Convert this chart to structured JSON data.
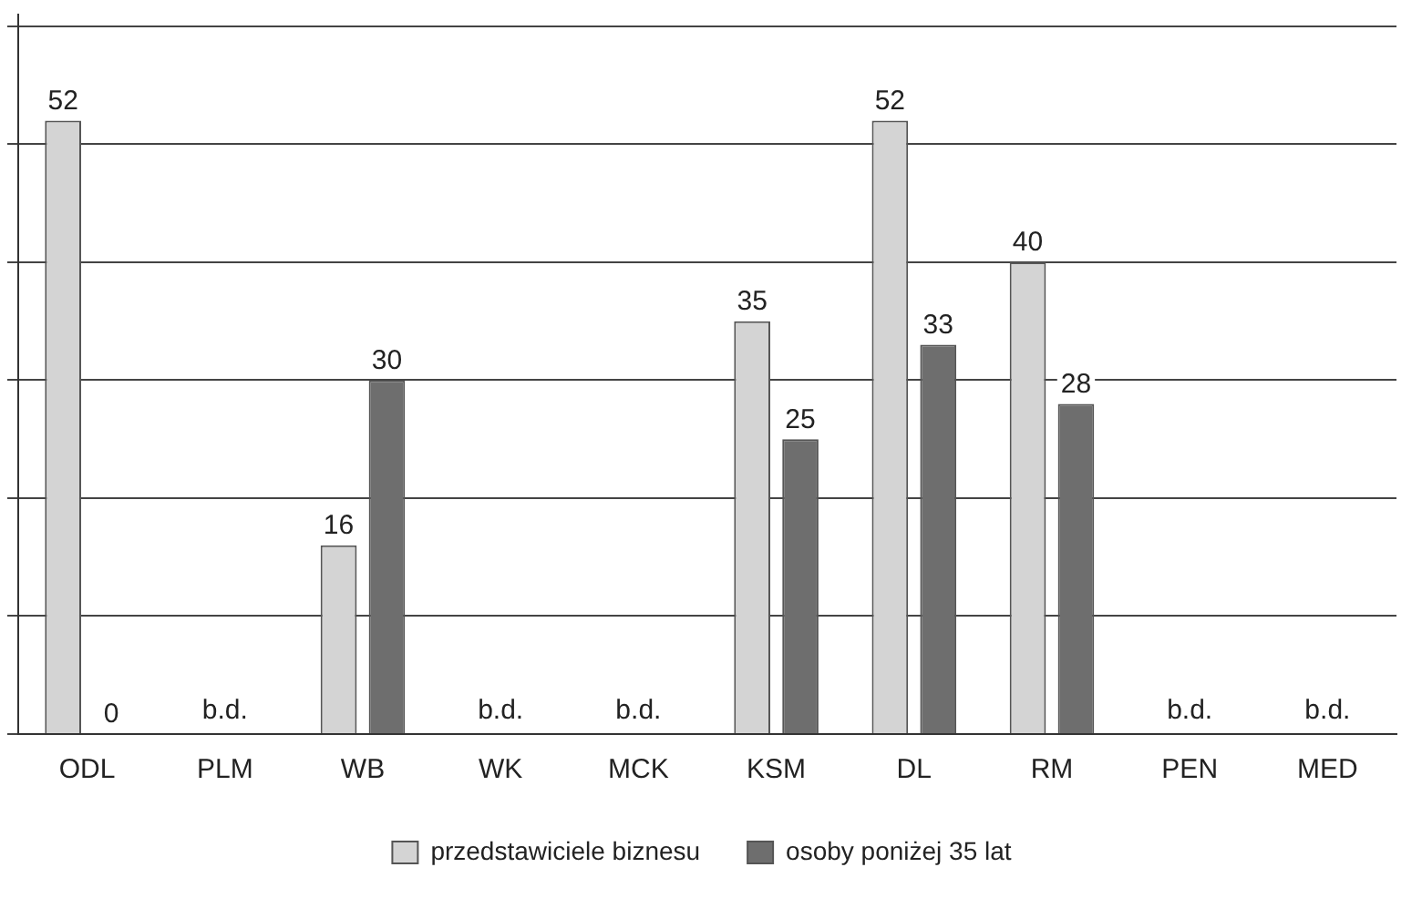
{
  "chart_data": {
    "type": "bar",
    "categories": [
      "ODL",
      "PLM",
      "WB",
      "WK",
      "MCK",
      "KSM",
      "DL",
      "RM",
      "PEN",
      "MED"
    ],
    "series": [
      {
        "name": "przedstawiciele biznesu",
        "color": "#d4d4d4",
        "values": [
          52,
          null,
          16,
          null,
          null,
          35,
          52,
          40,
          null,
          null
        ],
        "value_labels": [
          "52",
          "b.d.",
          "16",
          "b.d.",
          "b.d.",
          "35",
          "52",
          "40",
          "b.d.",
          "b.d."
        ]
      },
      {
        "name": "osoby poniżej 35 lat",
        "color": "#6e6e6e",
        "values": [
          0,
          null,
          30,
          null,
          null,
          25,
          33,
          28,
          null,
          null
        ],
        "value_labels": [
          "0",
          null,
          "30",
          null,
          null,
          "25",
          "33",
          "28",
          null,
          null
        ]
      }
    ],
    "ylim": [
      0,
      61
    ],
    "yticks": [
      {
        "value": 0,
        "label": null
      },
      {
        "value": 10,
        "label": null
      },
      {
        "value": 20,
        "label": null
      },
      {
        "value": 30,
        "label": null
      },
      {
        "value": 40,
        "label": null
      },
      {
        "value": 50,
        "label": null
      },
      {
        "value": 60,
        "label": null
      }
    ],
    "tick_labels": "x",
    "grid": "y",
    "legend": "bottom"
  }
}
